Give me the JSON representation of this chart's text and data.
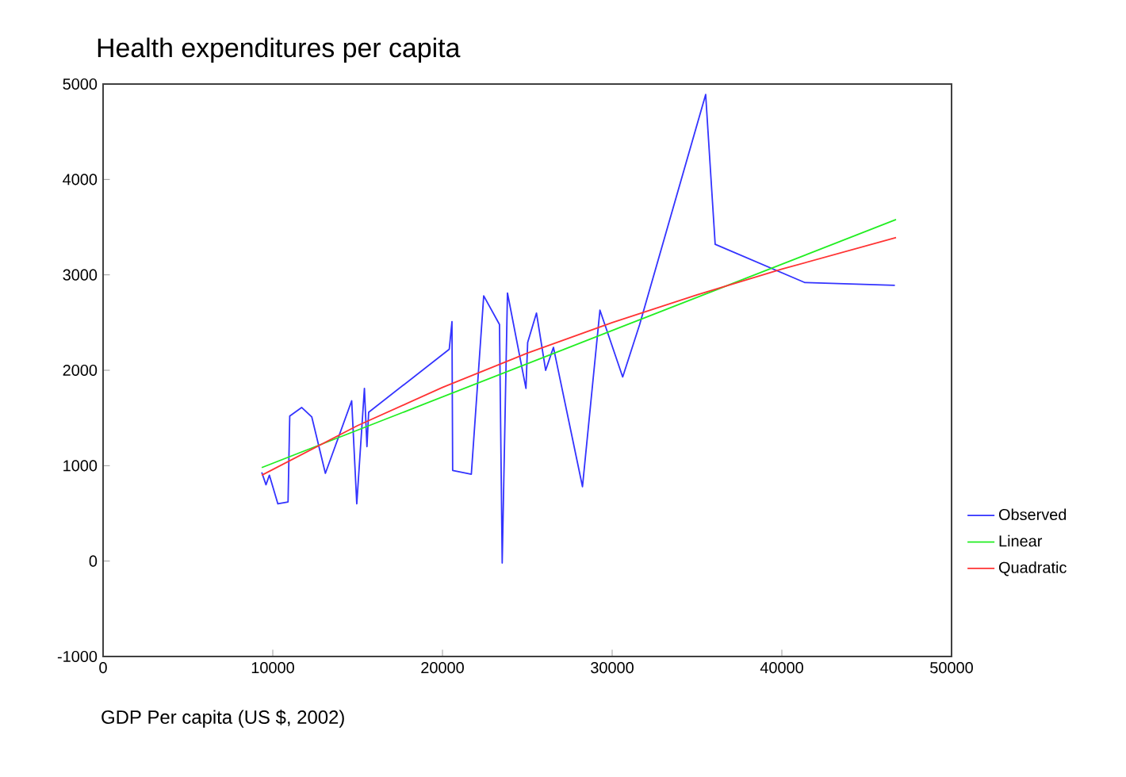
{
  "chart_data": {
    "type": "line",
    "title": "Health expenditures per capita",
    "xlabel": "GDP Per capita (US $, 2002)",
    "xlim": [
      0,
      50000
    ],
    "xticks": [
      0,
      10000,
      20000,
      30000,
      40000,
      50000
    ],
    "ylim": [
      -1000,
      5000
    ],
    "yticks": [
      -1000,
      0,
      1000,
      2000,
      3000,
      4000,
      5000
    ],
    "grid": false,
    "legend": "right",
    "series": [
      {
        "name": "Observed",
        "color": "#3333ff",
        "x": [
          9350,
          9600,
          9800,
          10300,
          10900,
          11000,
          11700,
          12300,
          13100,
          14650,
          14950,
          15400,
          15550,
          15650,
          20400,
          20560,
          20600,
          21700,
          22430,
          23360,
          23520,
          23830,
          24920,
          25020,
          25540,
          26080,
          26540,
          28250,
          29280,
          30620,
          31620,
          35510,
          36070,
          41340,
          46660
        ],
        "values": [
          930,
          800,
          900,
          600,
          620,
          1520,
          1610,
          1510,
          920,
          1680,
          600,
          1810,
          1200,
          1560,
          2220,
          2510,
          950,
          910,
          2780,
          2480,
          -20,
          2810,
          1810,
          2290,
          2600,
          2000,
          2240,
          780,
          2630,
          1930,
          2480,
          4890,
          3320,
          2920,
          2890
        ]
      },
      {
        "name": "Linear",
        "color": "#22ee22",
        "x": [
          9350,
          46730
        ],
        "values": [
          980,
          3580
        ]
      },
      {
        "name": "Quadratic",
        "color": "#ff3333",
        "x": [
          9350,
          15000,
          20000,
          25000,
          30000,
          35000,
          40000,
          46730
        ],
        "values": [
          900,
          1420,
          1820,
          2180,
          2500,
          2790,
          3060,
          3390
        ]
      }
    ]
  }
}
